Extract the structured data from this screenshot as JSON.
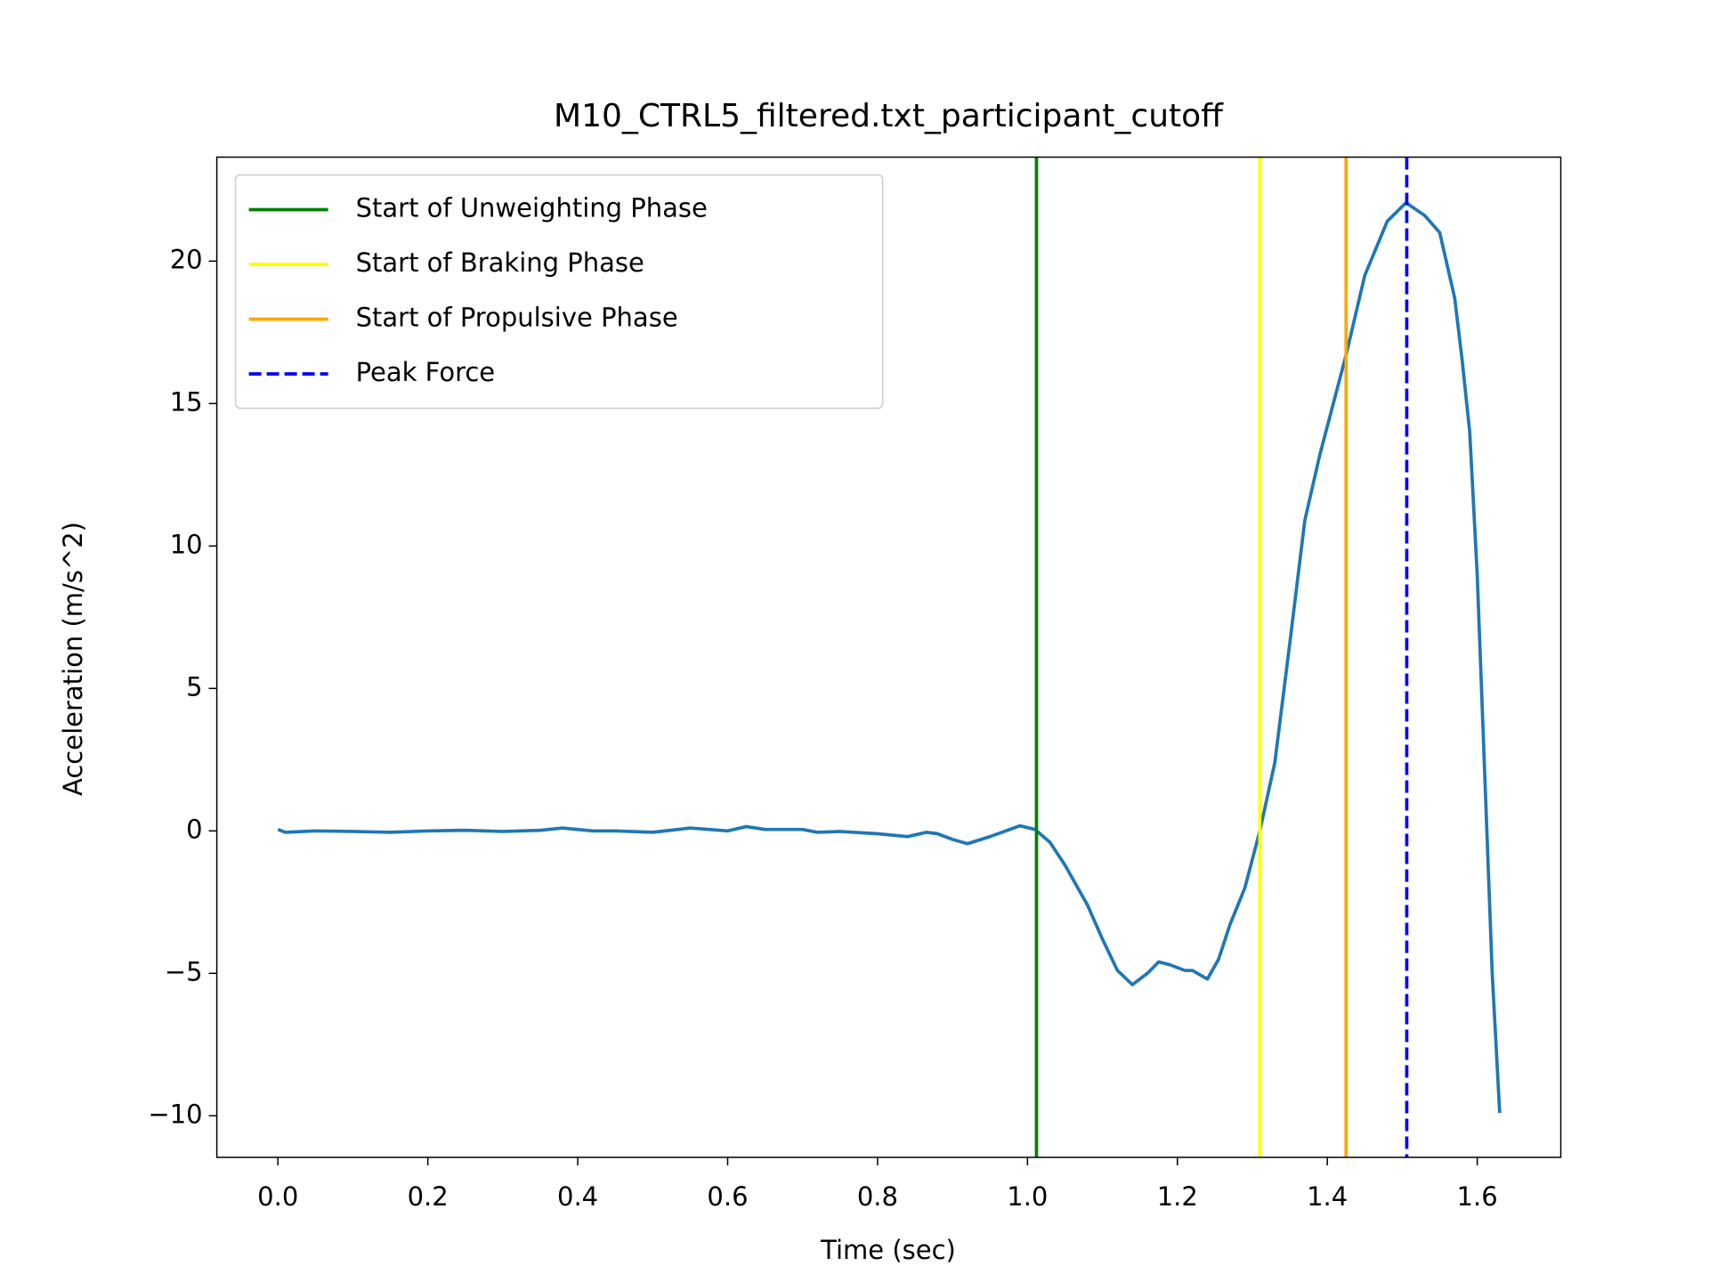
{
  "chart_data": {
    "type": "line",
    "title": "M10_CTRL5_filtered.txt_participant_cutoff",
    "x_label": "Time (sec)",
    "y_label": "Acceleration (m/s^2)",
    "x": [
      0,
      0.01,
      0.05,
      0.1,
      0.15,
      0.2,
      0.25,
      0.3,
      0.35,
      0.38,
      0.42,
      0.45,
      0.5,
      0.55,
      0.6,
      0.625,
      0.65,
      0.7,
      0.72,
      0.75,
      0.8,
      0.84,
      0.865,
      0.88,
      0.9,
      0.92,
      0.95,
      0.99,
      1.01,
      1.03,
      1.05,
      1.08,
      1.1,
      1.12,
      1.14,
      1.16,
      1.175,
      1.19,
      1.21,
      1.22,
      1.24,
      1.255,
      1.27,
      1.29,
      1.31,
      1.33,
      1.35,
      1.37,
      1.39,
      1.425,
      1.45,
      1.48,
      1.505,
      1.53,
      1.55,
      1.57,
      1.58,
      1.59,
      1.6,
      1.61,
      1.62,
      1.63
    ],
    "series": [
      {
        "color": "#1f77b4",
        "values": [
          0.05,
          -0.05,
          0,
          -0.02,
          -0.05,
          0,
          0.02,
          -0.02,
          0.02,
          0.1,
          0,
          0,
          -0.05,
          0.1,
          0,
          0.15,
          0.05,
          0.05,
          -0.05,
          -0.02,
          -0.1,
          -0.2,
          -0.05,
          -0.1,
          -0.3,
          -0.45,
          -0.2,
          0.18,
          0.05,
          -0.4,
          -1.2,
          -2.6,
          -3.8,
          -4.9,
          -5.4,
          -5.0,
          -4.6,
          -4.7,
          -4.9,
          -4.9,
          -5.2,
          -4.5,
          -3.3,
          -2.0,
          0,
          2.4,
          6.6,
          10.9,
          13.2,
          16.7,
          19.5,
          21.4,
          22.05,
          21.6,
          21.0,
          18.7,
          16.5,
          14,
          9,
          2,
          -5,
          -9.9
        ]
      }
    ],
    "vlines": [
      {
        "name": "Start of Unweighting Phase",
        "color": "green",
        "x": 1.012,
        "linestyle": "solid"
      },
      {
        "name": "Start of Braking Phase",
        "color": "yellow",
        "x": 1.31,
        "linestyle": "solid"
      },
      {
        "name": "Start of Propulsive Phase",
        "color": "orange",
        "x": 1.425,
        "linestyle": "solid"
      },
      {
        "name": "Peak Force",
        "color": "blue",
        "x": 1.506,
        "linestyle": "dashed"
      }
    ],
    "xlim": [
      -0.0815,
      1.7115
    ],
    "ylim": [
      -11.46,
      23.65
    ],
    "xticks": [
      {
        "value": 0,
        "label": "0.0"
      },
      {
        "value": 0.2,
        "label": "0.2"
      },
      {
        "value": 0.4,
        "label": "0.4"
      },
      {
        "value": 0.6,
        "label": "0.6"
      },
      {
        "value": 0.8,
        "label": "0.8"
      },
      {
        "value": 1.0,
        "label": "1.0"
      },
      {
        "value": 1.2,
        "label": "1.2"
      },
      {
        "value": 1.4,
        "label": "1.4"
      },
      {
        "value": 1.6,
        "label": "1.6"
      }
    ],
    "yticks": [
      {
        "value": -10,
        "label": "−10"
      },
      {
        "value": -5,
        "label": "−5"
      },
      0,
      5,
      10,
      15,
      20
    ],
    "legend": "upper left",
    "grid": false
  }
}
